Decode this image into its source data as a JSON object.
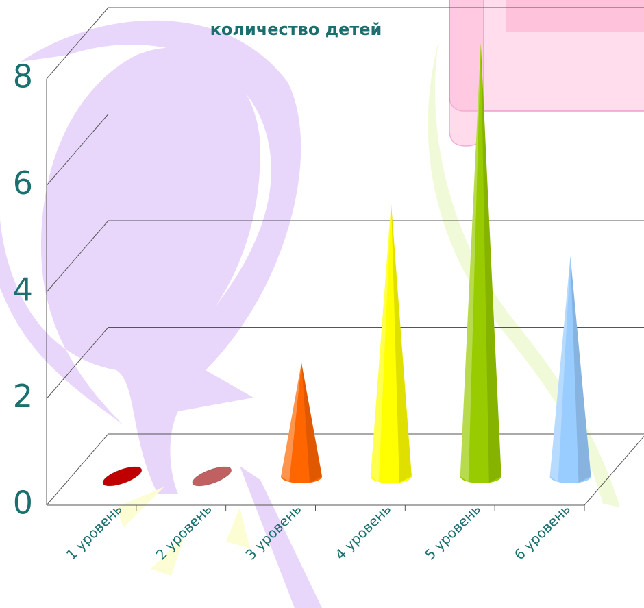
{
  "chart_data": {
    "type": "cone3d",
    "title": "количество детей",
    "categories": [
      "1 уровень",
      "2 уровень",
      "3 уровень",
      "4 уровень",
      "5 уровень",
      "6 уровень"
    ],
    "values": [
      0,
      0,
      2,
      5,
      8,
      4
    ],
    "colors": [
      "#c00000",
      "#c06060",
      "#ff6600",
      "#ffff00",
      "#99cc00",
      "#99ccff"
    ],
    "ylim": [
      0,
      8
    ],
    "yticks": [
      0,
      2,
      4,
      6,
      8
    ],
    "grid": true
  }
}
